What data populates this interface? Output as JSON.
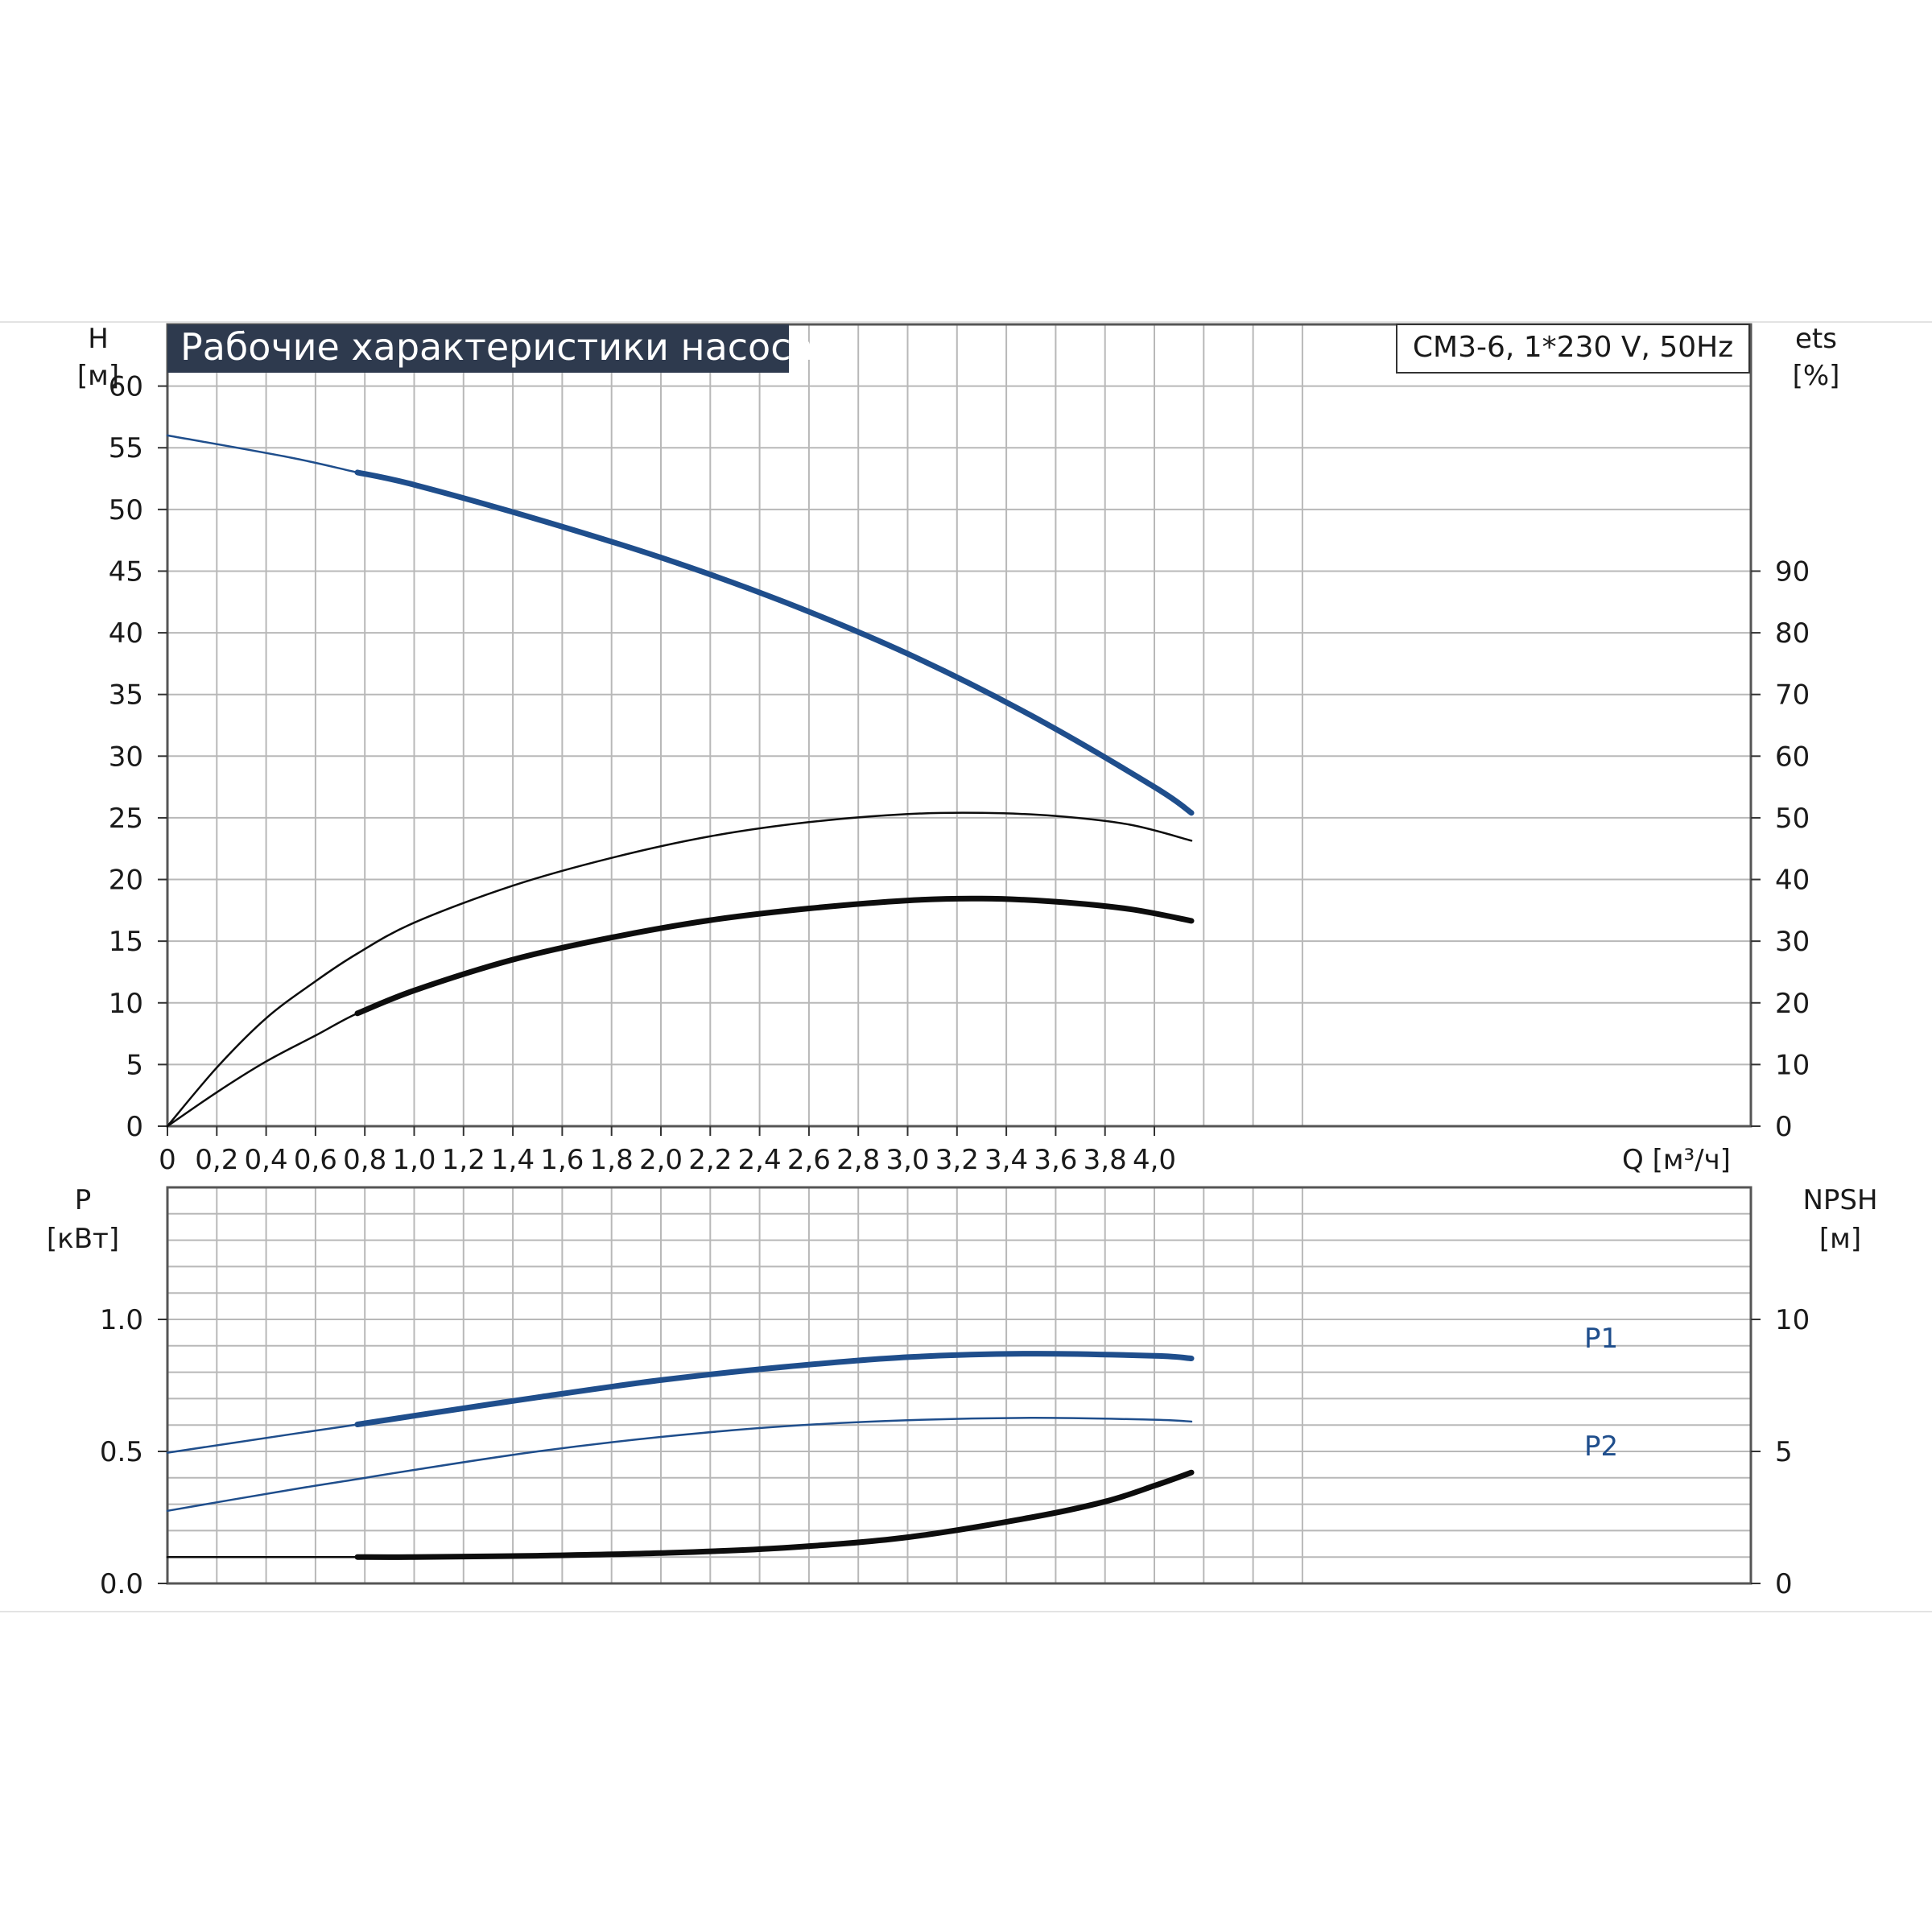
{
  "colors": {
    "blue": "#1f4e8c",
    "black": "#0d0d0d",
    "grid": "#b8b8b8",
    "title_bg": "#2e3a4e"
  },
  "chart_data": [
    {
      "type": "line",
      "title": "Рабочие характеристики насоса",
      "model": "CM3-6, 1*230 V, 50Hz",
      "ylabel_left": {
        "name": "H",
        "unit": "[м]"
      },
      "ylabel_right": {
        "name": "ets",
        "unit": "[%]"
      },
      "xlabel": "Q [м³/ч]",
      "xlim": [
        0,
        4.6
      ],
      "ylim_left": [
        0,
        65
      ],
      "ylim_right": [
        0,
        130
      ],
      "x_ticks": [
        "0",
        "0,2",
        "0,4",
        "0,6",
        "0,8",
        "1,0",
        "1,2",
        "1,4",
        "1,6",
        "1,8",
        "2,0",
        "2,2",
        "2,4",
        "2,6",
        "2,8",
        "3,0",
        "3,2",
        "3,4",
        "3,6",
        "3,8",
        "4,0"
      ],
      "y_ticks_left": [
        "0",
        "5",
        "10",
        "15",
        "20",
        "25",
        "30",
        "35",
        "40",
        "45",
        "50",
        "55",
        "60"
      ],
      "y_ticks_right": [
        "0",
        "10",
        "20",
        "30",
        "40",
        "50",
        "60",
        "70",
        "80",
        "90"
      ],
      "grid": true,
      "series": [
        {
          "axis": "left",
          "color": "blue",
          "x": [
            0,
            0.5,
            0.77,
            1.0,
            1.5,
            2.0,
            2.5,
            3.0,
            3.5,
            4.0,
            4.15
          ],
          "y": [
            56,
            54.2,
            53,
            52,
            49.2,
            46.1,
            42.5,
            38.3,
            33.3,
            27.5,
            25.4
          ],
          "bold_from": 0.77
        },
        {
          "axis": "right",
          "color": "black",
          "x": [
            0,
            0.2,
            0.4,
            0.6,
            0.77,
            1.0,
            1.4,
            1.8,
            2.2,
            2.6,
            3.0,
            3.3,
            3.6,
            3.9,
            4.15
          ],
          "y": [
            0,
            9.5,
            17.5,
            23.5,
            28,
            33,
            39,
            43.5,
            47,
            49.3,
            50.6,
            50.8,
            50.3,
            48.9,
            46.3
          ],
          "bold_from": 99
        },
        {
          "axis": "right",
          "color": "black",
          "x": [
            0,
            0.2,
            0.4,
            0.6,
            0.77,
            1.0,
            1.4,
            1.8,
            2.2,
            2.6,
            3.0,
            3.3,
            3.6,
            3.9,
            4.15
          ],
          "y": [
            0,
            5.5,
            10.5,
            14.7,
            18.3,
            22,
            27,
            30.6,
            33.4,
            35.3,
            36.6,
            36.9,
            36.4,
            35.2,
            33.3
          ],
          "bold_from": 0.77
        }
      ]
    },
    {
      "type": "line",
      "ylabel_left": {
        "name": "P",
        "unit": "[кВт]"
      },
      "ylabel_right": {
        "name": "NPSH",
        "unit": "[м]"
      },
      "xlim": [
        0,
        4.6
      ],
      "ylim_left": [
        0,
        1.5
      ],
      "ylim_right": [
        0,
        15
      ],
      "y_ticks_left": [
        "0.0",
        "0.5",
        "1.0"
      ],
      "y_ticks_right": [
        "0",
        "5",
        "10"
      ],
      "grid": true,
      "series": [
        {
          "name": "P1",
          "axis": "left",
          "color": "blue",
          "x": [
            0,
            0.5,
            0.77,
            1.0,
            1.5,
            2.0,
            2.5,
            3.0,
            3.5,
            4.0,
            4.15
          ],
          "y": [
            0.495,
            0.565,
            0.602,
            0.635,
            0.705,
            0.77,
            0.82,
            0.857,
            0.87,
            0.862,
            0.852
          ],
          "bold_from": 0.77
        },
        {
          "name": "P2",
          "axis": "left",
          "color": "blue",
          "x": [
            0,
            0.5,
            0.77,
            1.0,
            1.5,
            2.0,
            2.5,
            3.0,
            3.5,
            4.0,
            4.15
          ],
          "y": [
            0.275,
            0.355,
            0.395,
            0.43,
            0.5,
            0.555,
            0.595,
            0.618,
            0.627,
            0.62,
            0.613
          ],
          "bold_from": 99
        },
        {
          "axis": "right",
          "color": "black",
          "x": [
            0,
            0.77,
            1.0,
            1.5,
            2.0,
            2.5,
            3.0,
            3.5,
            3.8,
            4.0,
            4.15
          ],
          "y": [
            1.0,
            1.0,
            1.0,
            1.05,
            1.15,
            1.35,
            1.75,
            2.5,
            3.1,
            3.7,
            4.2
          ],
          "bold_from": 0.77
        }
      ]
    }
  ]
}
